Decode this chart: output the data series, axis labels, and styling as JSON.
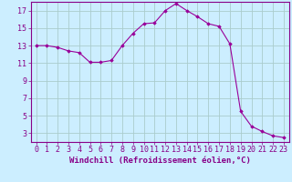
{
  "x": [
    0,
    1,
    2,
    3,
    4,
    5,
    6,
    7,
    8,
    9,
    10,
    11,
    12,
    13,
    14,
    15,
    16,
    17,
    18,
    19,
    20,
    21,
    22,
    23
  ],
  "y": [
    13.0,
    13.0,
    12.8,
    12.4,
    12.2,
    11.1,
    11.1,
    11.3,
    13.0,
    14.4,
    15.5,
    15.6,
    17.0,
    17.8,
    17.0,
    16.3,
    15.5,
    15.2,
    13.2,
    5.5,
    3.8,
    3.2,
    2.7,
    2.5
  ],
  "line_color": "#990099",
  "marker": "D",
  "marker_size": 1.8,
  "bg_color": "#cceeff",
  "grid_color": "#aacccc",
  "xlabel": "Windchill (Refroidissement éolien,°C)",
  "xlim": [
    -0.5,
    23.5
  ],
  "ylim": [
    2,
    18
  ],
  "yticks": [
    3,
    5,
    7,
    9,
    11,
    13,
    15,
    17
  ],
  "xticks": [
    0,
    1,
    2,
    3,
    4,
    5,
    6,
    7,
    8,
    9,
    10,
    11,
    12,
    13,
    14,
    15,
    16,
    17,
    18,
    19,
    20,
    21,
    22,
    23
  ],
  "xlabel_fontsize": 6.5,
  "tick_fontsize": 6.0
}
